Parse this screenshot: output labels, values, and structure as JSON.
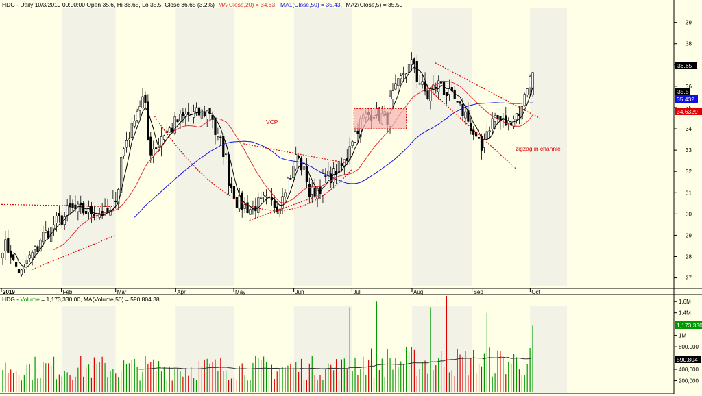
{
  "header": {
    "symbol": "HDG",
    "info_prefix": "HDG - Daily 10/3/2019 00:00:00 Open 35.6, Hi 36.65, Lo 35.5, Close 36.65 (3.2%)",
    "ma1_text": "MA(Close,20) = 34.63,",
    "ma2_text": "MA1(Close,50) = 35.43,",
    "ma3_text": "MA2(Close,5) = 35.50"
  },
  "volume_header": {
    "prefix": "HDG - ",
    "label": "Volume",
    "rest": " = 1,173,330.00, MA(Volume,50) = 590,804.38"
  },
  "colors": {
    "background": "#ffffe8",
    "band": "#f2f2e6",
    "up": "#009900",
    "down": "#dd0000",
    "ma20": "#e03030",
    "ma50": "#1010dd",
    "ma5": "#000000",
    "annotation": "#dd0000",
    "box_fill": "#f5b0b0"
  },
  "annotations": {
    "vcp": "VCP",
    "zigzag": "zigzag in channle"
  },
  "price_axis": {
    "ticks": [
      "39",
      "38",
      "37",
      "36",
      "35",
      "34",
      "33",
      "32",
      "31",
      "30",
      "29",
      "28",
      "27"
    ],
    "last_price": "36.65",
    "ma5_tag": "35.5",
    "ma50_tag": "35.432",
    "ma20_tag": "34.6329"
  },
  "volume_axis": {
    "ticks": [
      "1.6M",
      "1.4M",
      "1M",
      "800,000",
      "600,000",
      "400,000",
      "200,000"
    ],
    "last_volume": "1,173,330",
    "ma_tag": "590,804"
  },
  "time_axis": {
    "labels": [
      "2019",
      "Feb",
      "Mar",
      "Apr",
      "May",
      "Jun",
      "Jul",
      "Aug",
      "Sep",
      "Oct"
    ]
  },
  "chart_data": [
    {
      "type": "candlestick",
      "title": "HDG - Daily 10/3/2019",
      "ylim": [
        26.6,
        39.6
      ],
      "series": [
        {
          "name": "MA(Close,20)",
          "values": [
            34.63
          ]
        },
        {
          "name": "MA1(Close,50)",
          "values": [
            35.43
          ]
        },
        {
          "name": "MA2(Close,5)",
          "values": [
            35.5
          ]
        }
      ],
      "last_bar": {
        "date": "10/3/2019",
        "open": 35.6,
        "high": 36.65,
        "low": 35.5,
        "close": 36.65,
        "change_pct": 3.2
      },
      "anchors": [
        {
          "x": "2019-01-02",
          "y": 28.5
        },
        {
          "x": "2019-01-10",
          "y": 27.2
        },
        {
          "x": "2019-01-22",
          "y": 29.0
        },
        {
          "x": "2019-02-05",
          "y": 30.2
        },
        {
          "x": "2019-02-26",
          "y": 30.0
        },
        {
          "x": "2019-03-06",
          "y": 33.5
        },
        {
          "x": "2019-03-14",
          "y": 35.4
        },
        {
          "x": "2019-03-19",
          "y": 33.0
        },
        {
          "x": "2019-03-26",
          "y": 33.8
        },
        {
          "x": "2019-04-05",
          "y": 34.6
        },
        {
          "x": "2019-04-18",
          "y": 34.8
        },
        {
          "x": "2019-04-24",
          "y": 33.3
        },
        {
          "x": "2019-05-02",
          "y": 30.6
        },
        {
          "x": "2019-05-10",
          "y": 30.2
        },
        {
          "x": "2019-05-16",
          "y": 30.6
        },
        {
          "x": "2019-05-24",
          "y": 30.4
        },
        {
          "x": "2019-06-03",
          "y": 32.8
        },
        {
          "x": "2019-06-10",
          "y": 30.9
        },
        {
          "x": "2019-06-17",
          "y": 31.6
        },
        {
          "x": "2019-06-26",
          "y": 32.2
        },
        {
          "x": "2019-07-05",
          "y": 34.3
        },
        {
          "x": "2019-07-12",
          "y": 34.8
        },
        {
          "x": "2019-07-19",
          "y": 34.5
        },
        {
          "x": "2019-07-26",
          "y": 36.3
        },
        {
          "x": "2019-08-02",
          "y": 37.1
        },
        {
          "x": "2019-08-09",
          "y": 35.5
        },
        {
          "x": "2019-08-16",
          "y": 36.2
        },
        {
          "x": "2019-08-23",
          "y": 35.3
        },
        {
          "x": "2019-08-30",
          "y": 34.6
        },
        {
          "x": "2019-09-06",
          "y": 33.0
        },
        {
          "x": "2019-09-13",
          "y": 34.6
        },
        {
          "x": "2019-09-20",
          "y": 34.2
        },
        {
          "x": "2019-09-27",
          "y": 34.9
        },
        {
          "x": "2019-10-03",
          "y": 36.65
        }
      ]
    },
    {
      "type": "bar",
      "title": "HDG - Volume",
      "ylim": [
        0,
        1700000
      ],
      "series": [
        {
          "name": "Volume",
          "values": [
            1173330
          ]
        },
        {
          "name": "MA(Volume,50)",
          "values": [
            590804.38
          ]
        }
      ],
      "spikes": [
        {
          "x": "2019-07-01",
          "value": 1500000
        },
        {
          "x": "2019-07-15",
          "value": 1600000
        },
        {
          "x": "2019-08-12",
          "value": 1500000
        },
        {
          "x": "2019-08-20",
          "value": 1700000
        },
        {
          "x": "2019-09-10",
          "value": 1400000
        },
        {
          "x": "2019-10-03",
          "value": 1173330
        }
      ]
    }
  ]
}
